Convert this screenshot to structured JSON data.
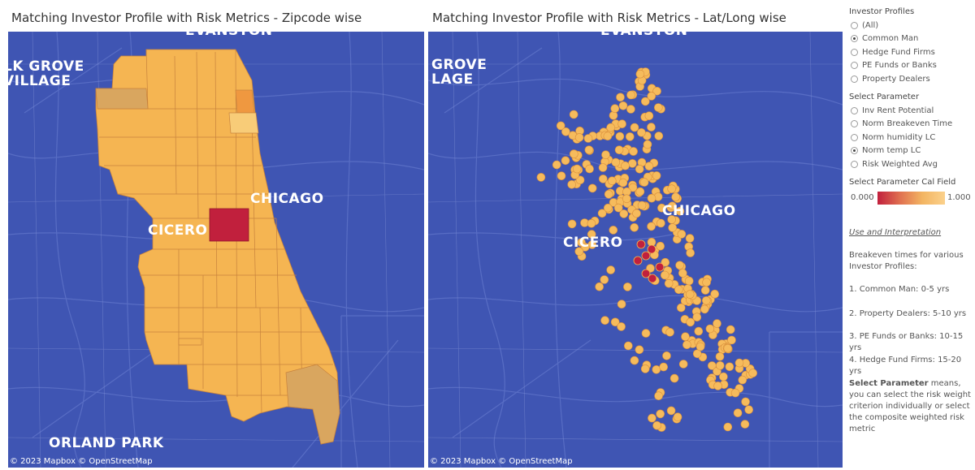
{
  "left_map": {
    "title": "Matching Investor Profile with Risk Metrics - Zipcode wise",
    "labels": {
      "north": "EVANSTON",
      "northwest": "LK GROVE\nVILLAGE",
      "west": "CICERO",
      "center": "CHICAGO",
      "southwest": "ORLAND PARK"
    },
    "attribution": "© 2023 Mapbox  © OpenStreetMap"
  },
  "right_map": {
    "title": "Matching Investor Profile with Risk Metrics - Lat/Long wise",
    "labels": {
      "north": "EVANSTON",
      "northwest": "GROVE\nLAGE",
      "west": "CICERO",
      "center": "CHICAGO"
    },
    "attribution": "© 2023 Mapbox  © OpenStreetMap"
  },
  "filters": {
    "investor_profiles": {
      "heading": "Investor Profiles",
      "options": [
        "(All)",
        "Common Man",
        "Hedge Fund Firms",
        "PE Funds or Banks",
        "Property Dealers"
      ],
      "selected": "Common Man"
    },
    "select_parameter": {
      "heading": "Select Parameter",
      "options": [
        "Inv Rent Potential",
        "Norm Breakeven Time",
        "Norm humidity LC",
        "Norm temp LC",
        "Risk Weighted Avg"
      ],
      "selected": "Norm temp LC"
    }
  },
  "legend": {
    "heading": "Select Parameter Cal Field",
    "min": "0.000",
    "max": "1.000",
    "colors": [
      "#c1203d",
      "#fbd18b"
    ]
  },
  "notes": {
    "link": "Use and Interpretation",
    "intro": "Breakeven times for various Investor Profiles:",
    "items": [
      "1. Common Man: 0-5 yrs",
      "2. Property Dealers: 5-10 yrs",
      "3. PE Funds or Banks: 10-15 yrs",
      "4. Hedge Fund Firms: 15-20 yrs"
    ],
    "explain_bold": "Select Parameter",
    "explain_rest": " means, you can select the risk weight criterion individually or select the composite weighted risk metric"
  },
  "colors": {
    "map_background": "#3f55b3",
    "zip_fill": "#f5b552",
    "zip_high": "#c1203d",
    "dot_fill": "#f6bb5c"
  }
}
